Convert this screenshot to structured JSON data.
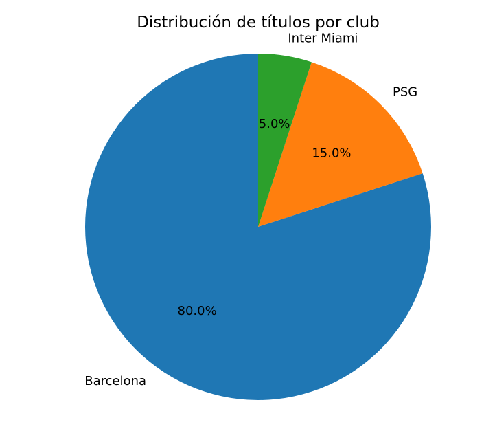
{
  "chart_data": {
    "type": "pie",
    "title": "Distribución de títulos por club",
    "slices": [
      {
        "label": "Barcelona",
        "value": 80,
        "pct_label": "80.0%",
        "color": "#1f77b4"
      },
      {
        "label": "PSG",
        "value": 15,
        "pct_label": "15.0%",
        "color": "#ff7f0e"
      },
      {
        "label": "Inter Miami",
        "value": 5,
        "pct_label": "5.0%",
        "color": "#2ca02c"
      }
    ],
    "start_angle_deg": 90,
    "direction": "counterclockwise",
    "legend": "none"
  }
}
